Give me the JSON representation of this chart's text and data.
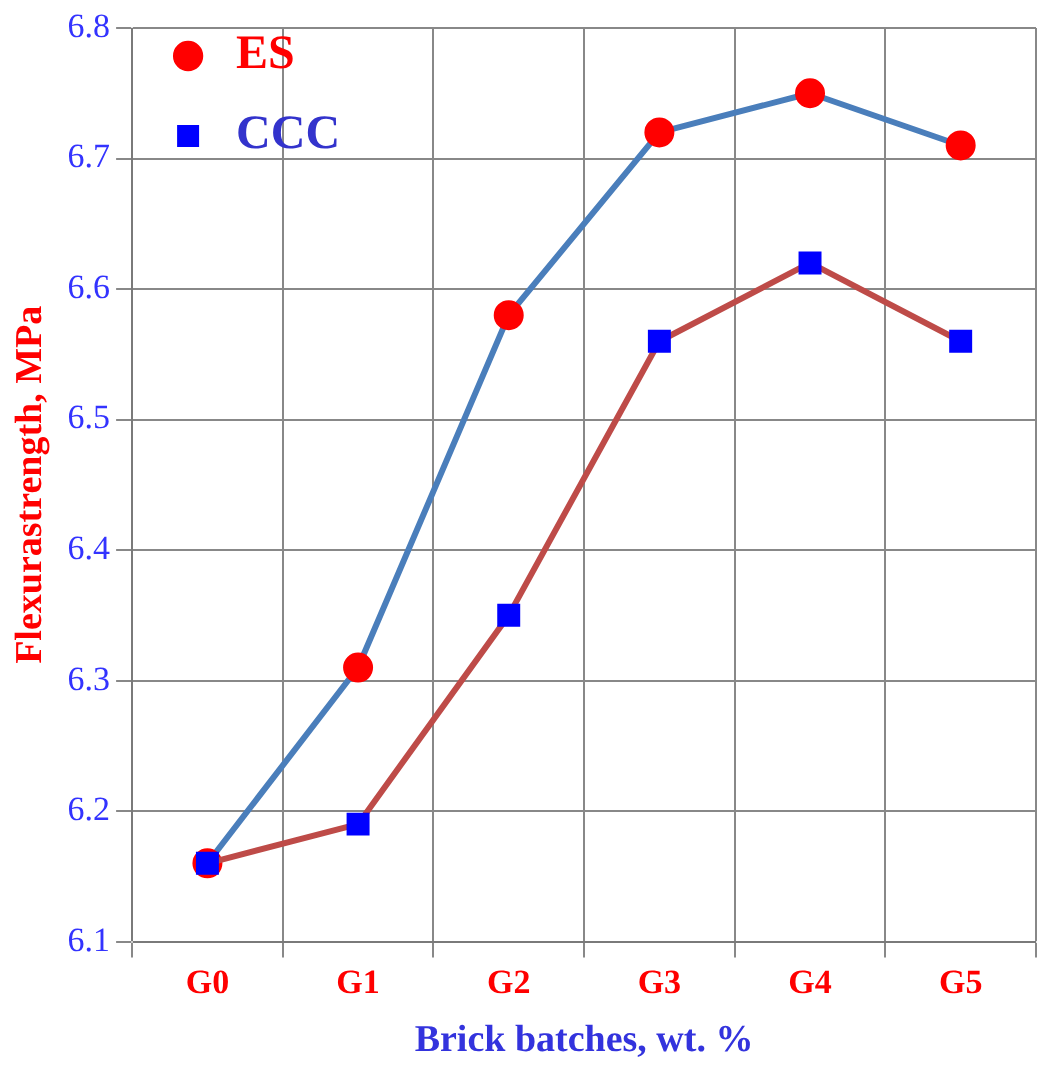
{
  "chart_data": {
    "type": "line",
    "xlabel": "Brick batches, wt. %",
    "ylabel": "Flexurastrength, MPa",
    "categories": [
      "G0",
      "G1",
      "G2",
      "G3",
      "G4",
      "G5"
    ],
    "series": [
      {
        "name": "ES",
        "color": "#4a7ebb",
        "colors": [
          "#ff0000",
          "#ff0000",
          "#ff0000",
          "#ff0000",
          "#ff0000",
          "#ff0000"
        ],
        "marker": "circle",
        "values": [
          6.16,
          6.31,
          6.58,
          6.72,
          6.75,
          6.71
        ]
      },
      {
        "name": "CCC",
        "color": "#be4b48",
        "colors": [
          "#0000ff",
          "#0000ff",
          "#0000ff",
          "#0000ff",
          "#0000ff",
          "#0000ff"
        ],
        "marker": "square",
        "values": [
          6.16,
          6.19,
          6.35,
          6.56,
          6.62,
          6.56
        ]
      }
    ],
    "ylim": [
      6.1,
      6.8
    ],
    "yticks": [
      6.1,
      6.2,
      6.3,
      6.4,
      6.5,
      6.6,
      6.7,
      6.8
    ],
    "grid": true,
    "legend": "top left"
  }
}
